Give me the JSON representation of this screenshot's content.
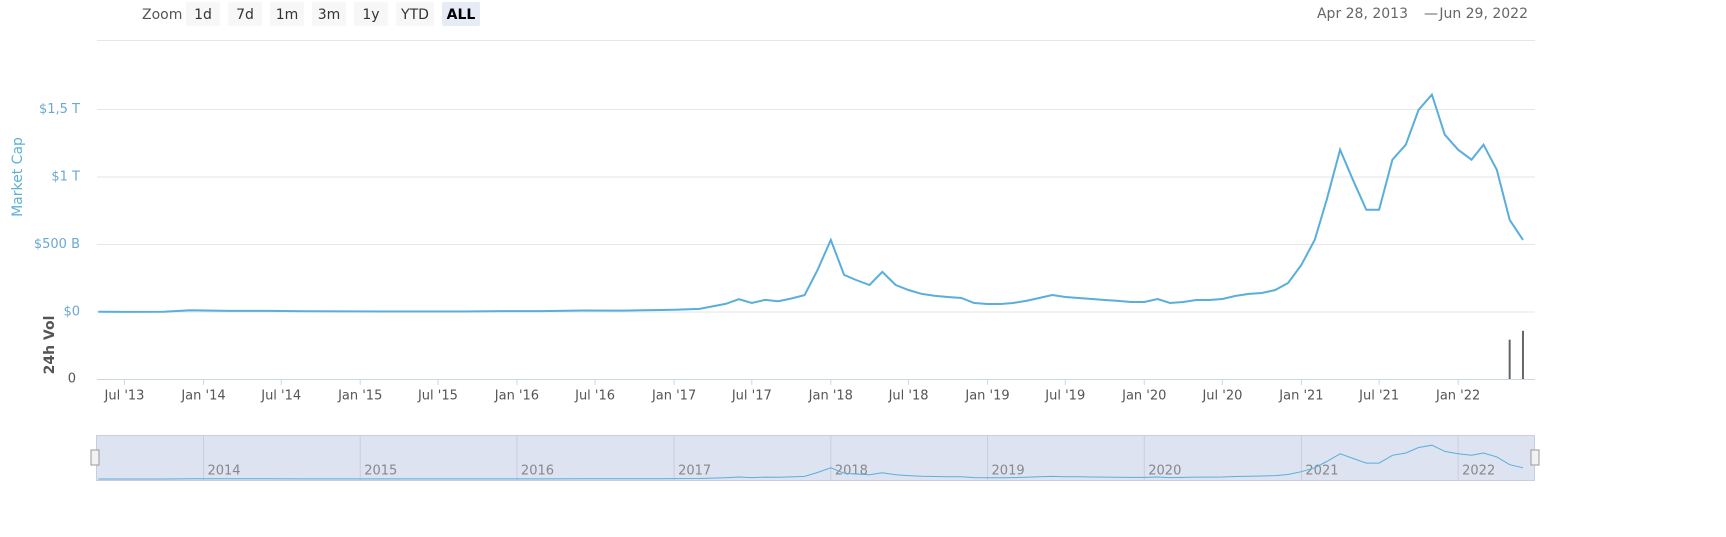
{
  "toolbar": {
    "zoom_label": "Zoom",
    "buttons": [
      "1d",
      "7d",
      "1m",
      "3m",
      "1y",
      "YTD",
      "ALL"
    ],
    "selected": 6
  },
  "range": {
    "from": "Apr 28, 2013",
    "separator": "—",
    "to": "Jun 29, 2022"
  },
  "chart_data": [
    {
      "type": "line",
      "ylabel": "Market Cap",
      "color": "#5aaedc",
      "x": [
        "2013-05",
        "2013-07",
        "2013-10",
        "2013-12",
        "2014-03",
        "2014-06",
        "2014-09",
        "2014-12",
        "2015-03",
        "2015-06",
        "2015-09",
        "2015-12",
        "2016-03",
        "2016-06",
        "2016-09",
        "2016-12",
        "2017-01",
        "2017-03",
        "2017-05",
        "2017-06",
        "2017-07",
        "2017-08",
        "2017-09",
        "2017-10",
        "2017-11",
        "2017-12",
        "2018-01",
        "2018-02",
        "2018-03",
        "2018-04",
        "2018-05",
        "2018-06",
        "2018-07",
        "2018-08",
        "2018-09",
        "2018-10",
        "2018-11",
        "2018-12",
        "2019-01",
        "2019-02",
        "2019-03",
        "2019-04",
        "2019-05",
        "2019-06",
        "2019-07",
        "2019-08",
        "2019-09",
        "2019-10",
        "2019-11",
        "2019-12",
        "2020-01",
        "2020-02",
        "2020-03",
        "2020-04",
        "2020-05",
        "2020-06",
        "2020-07",
        "2020-08",
        "2020-09",
        "2020-10",
        "2020-11",
        "2020-12",
        "2021-01",
        "2021-02",
        "2021-03",
        "2021-04",
        "2021-05",
        "2021-06",
        "2021-07",
        "2021-08",
        "2021-09",
        "2021-10",
        "2021-11",
        "2021-12",
        "2022-01",
        "2022-02",
        "2022-03",
        "2022-04",
        "2022-05",
        "2022-06"
      ],
      "values": [
        1500000000.0,
        1000000000.0,
        1500000000.0,
        13000000000.0,
        8000000000.0,
        8000000000.0,
        6000000000.0,
        4500000000.0,
        4000000000.0,
        4000000000.0,
        3500000000.0,
        7000000000.0,
        7000000000.0,
        11000000000.0,
        10000000000.0,
        15000000000.0,
        17000000000.0,
        23000000000.0,
        60000000000.0,
        95000000000.0,
        67000000000.0,
        90000000000.0,
        80000000000.0,
        100000000000.0,
        125000000000.0,
        310000000000.0,
        534000000000.0,
        275000000000.0,
        237000000000.0,
        200000000000.0,
        297000000000.0,
        200000000000.0,
        163000000000.0,
        134000000000.0,
        119000000000.0,
        111000000000.0,
        104000000000.0,
        67000000000.0,
        59000000000.0,
        59000000000.0,
        67000000000.0,
        82000000000.0,
        104000000000.0,
        126000000000.0,
        111000000000.0,
        104000000000.0,
        96000000000.0,
        89000000000.0,
        82000000000.0,
        74000000000.0,
        74000000000.0,
        96000000000.0,
        67000000000.0,
        74000000000.0,
        89000000000.0,
        89000000000.0,
        96000000000.0,
        119000000000.0,
        134000000000.0,
        141000000000.0,
        163000000000.0,
        215000000000.0,
        349000000000.0,
        534000000000.0,
        831000000000.0,
        1202000000000.0,
        979000000000.0,
        757000000000.0,
        757000000000.0,
        1128000000000.0,
        1239000000000.0,
        1498000000000.0,
        1610000000000.0,
        1313000000000.0,
        1202000000000.0,
        1128000000000.0,
        1239000000000.0,
        1053000000000.0,
        682000000000.0,
        534000000000.0
      ],
      "xlim": [
        "2013-04-28",
        "2022-06-29"
      ],
      "xticks": [
        {
          "value": "2013-07",
          "label": "Jul '13"
        },
        {
          "value": "2014-01",
          "label": "Jan '14"
        },
        {
          "value": "2014-07",
          "label": "Jul '14"
        },
        {
          "value": "2015-01",
          "label": "Jan '15"
        },
        {
          "value": "2015-07",
          "label": "Jul '15"
        },
        {
          "value": "2016-01",
          "label": "Jan '16"
        },
        {
          "value": "2016-07",
          "label": "Jul '16"
        },
        {
          "value": "2017-01",
          "label": "Jan '17"
        },
        {
          "value": "2017-07",
          "label": "Jul '17"
        },
        {
          "value": "2018-01",
          "label": "Jan '18"
        },
        {
          "value": "2018-07",
          "label": "Jul '18"
        },
        {
          "value": "2019-01",
          "label": "Jan '19"
        },
        {
          "value": "2019-07",
          "label": "Jul '19"
        },
        {
          "value": "2020-01",
          "label": "Jan '20"
        },
        {
          "value": "2020-07",
          "label": "Jul '20"
        },
        {
          "value": "2021-01",
          "label": "Jan '21"
        },
        {
          "value": "2021-07",
          "label": "Jul '21"
        },
        {
          "value": "2022-01",
          "label": "Jan '22"
        }
      ],
      "ylim": [
        0,
        2000000000000.0
      ],
      "yticks": [
        {
          "value": 0,
          "label": "$0"
        },
        {
          "value": 500000000000.0,
          "label": "$500 B"
        },
        {
          "value": 1000000000000.0,
          "label": "$1 T"
        },
        {
          "value": 1500000000000.0,
          "label": "$1,5 T"
        }
      ],
      "grid": true
    },
    {
      "type": "bar",
      "ylabel": "24h Vol",
      "color": "#666666",
      "x": [
        "2022-05",
        "2022-06"
      ],
      "values": [
        40000000000.0,
        49000000000.0
      ],
      "ylim": [
        0,
        60000000000.0
      ],
      "yticks": [
        0
      ]
    }
  ],
  "navigator": {
    "xticks": [
      "2014",
      "2015",
      "2016",
      "2017",
      "2018",
      "2019",
      "2020",
      "2021",
      "2022"
    ]
  }
}
